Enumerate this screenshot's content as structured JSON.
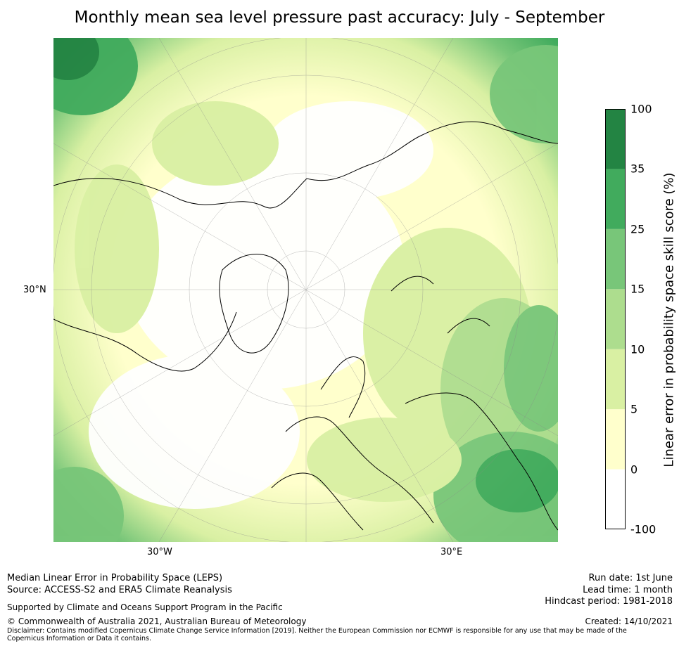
{
  "title": "Monthly mean sea level pressure past accuracy: July - September",
  "map": {
    "lat_labels": [
      "30°N"
    ],
    "lon_labels": [
      "30°W",
      "30°E"
    ]
  },
  "colorbar": {
    "label": "Linear error in probability space skill score (%)",
    "ticks": [
      "100",
      "35",
      "25",
      "15",
      "10",
      "5",
      "0",
      "-100"
    ],
    "bins": [
      {
        "from": "-100",
        "to": "0",
        "color": "#ffffff"
      },
      {
        "from": "0",
        "to": "5",
        "color": "#ffffcc"
      },
      {
        "from": "5",
        "to": "10",
        "color": "#d9f0a3"
      },
      {
        "from": "10",
        "to": "15",
        "color": "#addd8e"
      },
      {
        "from": "15",
        "to": "25",
        "color": "#78c679"
      },
      {
        "from": "25",
        "to": "35",
        "color": "#41ab5d"
      },
      {
        "from": "35",
        "to": "100",
        "color": "#238443"
      }
    ]
  },
  "footer": {
    "line1": "Median Linear Error in Probability Space (LEPS)",
    "line2": "Source: ACCESS-S2 and ERA5 Climate Reanalysis",
    "support": "Supported by Climate and Oceans Support Program in the Pacific",
    "copyright": "© Commonwealth of Australia 2021, Australian Bureau of Meteorology",
    "disclaimer": "Disclaimer: Contains modified Copernicus Climate Change Service Information [2019]. Neither the European Commission nor ECMWF is responsible for any use that may be made of the Copernicus Information or Data it contains.",
    "run_date": "Run date: 1st June",
    "lead_time": "Lead time: 1 month",
    "hindcast": "Hindcast period: 1981-2018",
    "created": "Created: 14/10/2021"
  }
}
